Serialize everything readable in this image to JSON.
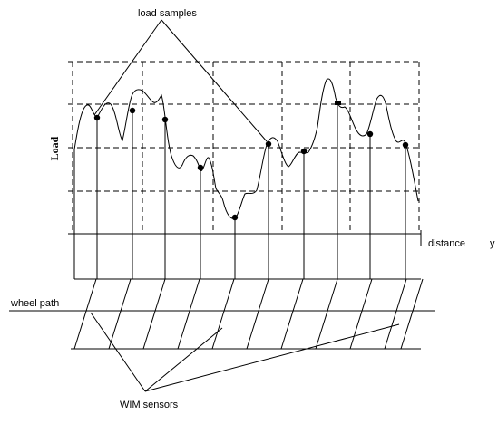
{
  "labels": {
    "load_samples": "load samples",
    "load_axis": "Load",
    "distance": "distance",
    "distance_symbol": "y",
    "wheel_path": "wheel path",
    "wim_sensors": "WIM sensors"
  },
  "colors": {
    "ink": "#000000",
    "background": "#ffffff"
  }
}
